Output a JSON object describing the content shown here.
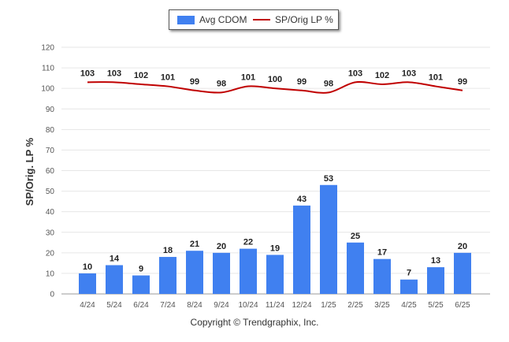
{
  "chart_data": {
    "type": "bar",
    "categories": [
      "4/24",
      "5/24",
      "6/24",
      "7/24",
      "8/24",
      "9/24",
      "10/24",
      "11/24",
      "12/24",
      "1/25",
      "2/25",
      "3/25",
      "4/25",
      "5/25",
      "6/25"
    ],
    "series": [
      {
        "name": "Avg CDOM",
        "kind": "bar",
        "color": "#4080F0",
        "values": [
          10,
          14,
          9,
          18,
          21,
          20,
          22,
          19,
          43,
          53,
          25,
          17,
          7,
          13,
          20
        ]
      },
      {
        "name": "SP/Orig LP %",
        "kind": "line",
        "color": "#C00000",
        "values": [
          103,
          103,
          102,
          101,
          99,
          98,
          101,
          100,
          99,
          98,
          103,
          102,
          103,
          101,
          99
        ]
      }
    ],
    "ylabel": "SP/Orig. LP %",
    "ylim": [
      0,
      120
    ],
    "yticks": [
      0,
      10,
      20,
      30,
      40,
      50,
      60,
      70,
      80,
      90,
      100,
      110,
      120
    ],
    "grid": true,
    "legend_position": "top-center"
  },
  "legend": {
    "bar_label": "Avg CDOM",
    "line_label": "SP/Orig LP %"
  },
  "footer": "Copyright © Trendgraphix, Inc."
}
